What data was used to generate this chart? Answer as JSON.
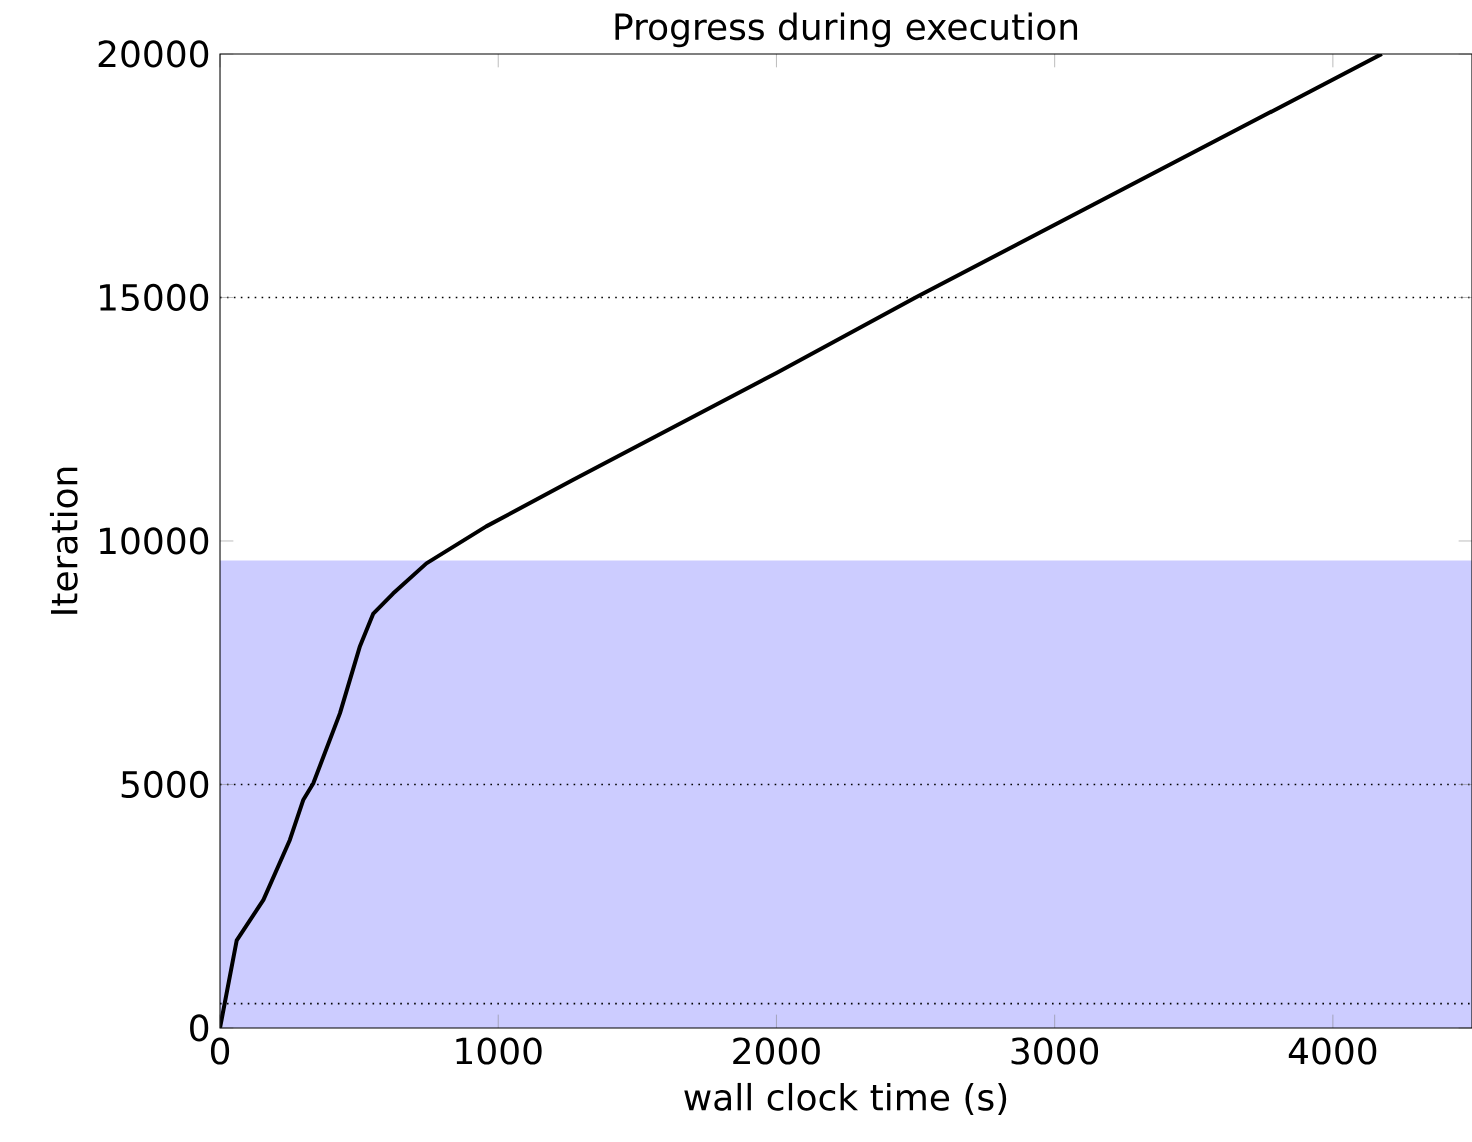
{
  "chart_data": {
    "type": "line",
    "title": "Progress during execution",
    "xlabel": "wall clock time (s)",
    "ylabel": "Iteration",
    "x": [
      0,
      60,
      156,
      251,
      299,
      335,
      431,
      503,
      551,
      622,
      742,
      957,
      1268,
      2000,
      2500,
      4176
    ],
    "series": [
      {
        "color": "#000000",
        "values": [
          0,
          1800,
          2630,
          3860,
          4680,
          5020,
          6460,
          7840,
          8510,
          8920,
          9540,
          10300,
          11250,
          13450,
          15000,
          20000
        ]
      }
    ],
    "xlim": [
      0,
      4500
    ],
    "ylim": [
      0,
      20000
    ],
    "xticks": [
      0,
      1000,
      2000,
      3000,
      4000
    ],
    "yticks": [
      0,
      5000,
      10000,
      15000,
      20000
    ],
    "marker": "none",
    "line_style": "solid",
    "bands": [
      {
        "axis": "y",
        "from": 0,
        "to": 9600,
        "color": "#ccccff"
      }
    ],
    "ref_lines": [
      {
        "axis": "y",
        "value": 15000,
        "color": "#000000",
        "line_style": "dotted"
      },
      {
        "axis": "y",
        "value": 5000,
        "color": "#000000",
        "line_style": "dotted"
      },
      {
        "axis": "y",
        "value": 500,
        "color": "#000000",
        "line_style": "dotted"
      }
    ]
  }
}
